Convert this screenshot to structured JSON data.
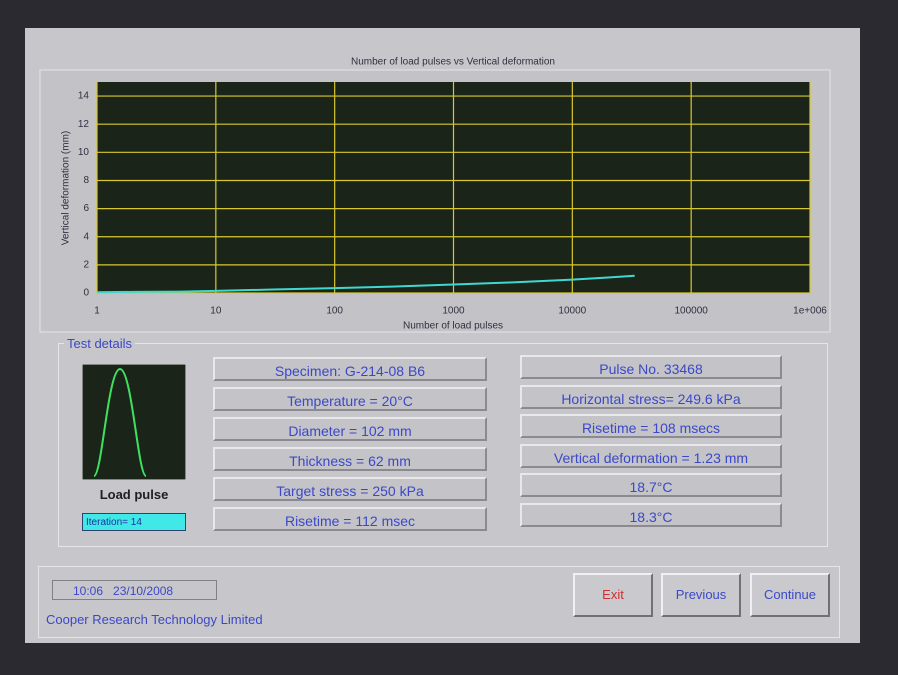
{
  "chart_data": {
    "type": "line",
    "title": "Number of load pulses vs Vertical deformation",
    "x_label": "Number of load pulses",
    "y_label": "Vertical deformation (mm)",
    "x": [
      1,
      2,
      5,
      10,
      30,
      100,
      300,
      1000,
      3000,
      10000,
      20000,
      33468
    ],
    "values": [
      0.05,
      0.08,
      0.1,
      0.15,
      0.25,
      0.35,
      0.45,
      0.6,
      0.75,
      0.95,
      1.1,
      1.23
    ],
    "color": "#3fd8d0",
    "log_x": true,
    "grid": true,
    "xlim": [
      1,
      1000000
    ],
    "xticks": [
      1,
      10,
      100,
      1000,
      10000,
      100000,
      {
        "value": 1000000,
        "label": "1e+006"
      }
    ],
    "ylim": [
      0,
      15
    ],
    "yticks": [
      0,
      2,
      4,
      6,
      8,
      10,
      12,
      14
    ]
  },
  "test_details": {
    "title": "Test details",
    "load_pulse_label": "Load pulse",
    "iteration": "Iteration= 14",
    "left": [
      "Specimen: G-214-08 B6",
      "Temperature = 20°C",
      "Diameter = 102 mm",
      "Thickness = 62 mm",
      "Target stress = 250 kPa",
      "Risetime = 112 msec"
    ],
    "right": [
      "Pulse No. 33468",
      "Horizontal stress= 249.6 kPa",
      "Risetime = 108 msecs",
      "Vertical deformation = 1.23 mm",
      "18.7°C",
      "18.3°C"
    ]
  },
  "footer": {
    "datetime": "10:06   23/10/2008",
    "company": "Cooper Research Technology Limited",
    "buttons": [
      "Exit",
      "Previous",
      "Continue"
    ]
  }
}
